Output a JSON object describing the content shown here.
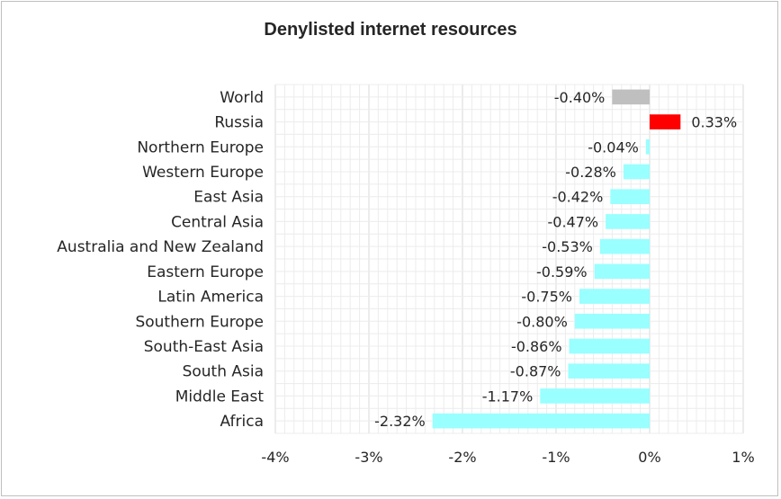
{
  "chart_data": {
    "type": "bar",
    "orientation": "horizontal",
    "title": "Denylisted internet resources",
    "categories": [
      "World",
      "Russia",
      "Northern Europe",
      "Western Europe",
      "East Asia",
      "Central Asia",
      "Australia and New Zealand",
      "Eastern Europe",
      "Latin America",
      "Southern Europe",
      "South-East Asia",
      "South Asia",
      "Middle East",
      "Africa"
    ],
    "values": [
      -0.4,
      0.33,
      -0.04,
      -0.28,
      -0.42,
      -0.47,
      -0.53,
      -0.59,
      -0.75,
      -0.8,
      -0.86,
      -0.87,
      -1.17,
      -2.32
    ],
    "data_labels": [
      "-0.40%",
      "0.33%",
      "-0.04%",
      "-0.28%",
      "-0.42%",
      "-0.47%",
      "-0.53%",
      "-0.59%",
      "-0.75%",
      "-0.80%",
      "-0.86%",
      "-0.87%",
      "-1.17%",
      "-2.32%"
    ],
    "xlim": [
      -4,
      1
    ],
    "x_ticks": [
      -4,
      -3,
      -2,
      -1,
      0,
      1
    ],
    "x_tick_labels": [
      "-4%",
      "-3%",
      "-2%",
      "-1%",
      "0%",
      "1%"
    ],
    "grid": true,
    "legend": "none",
    "colors": {
      "world": "#bfbfbf",
      "russia": "#ff0000",
      "regions": "#99ffff",
      "grid_major": "#d9d9d9",
      "grid_minor": "#ececec"
    }
  }
}
